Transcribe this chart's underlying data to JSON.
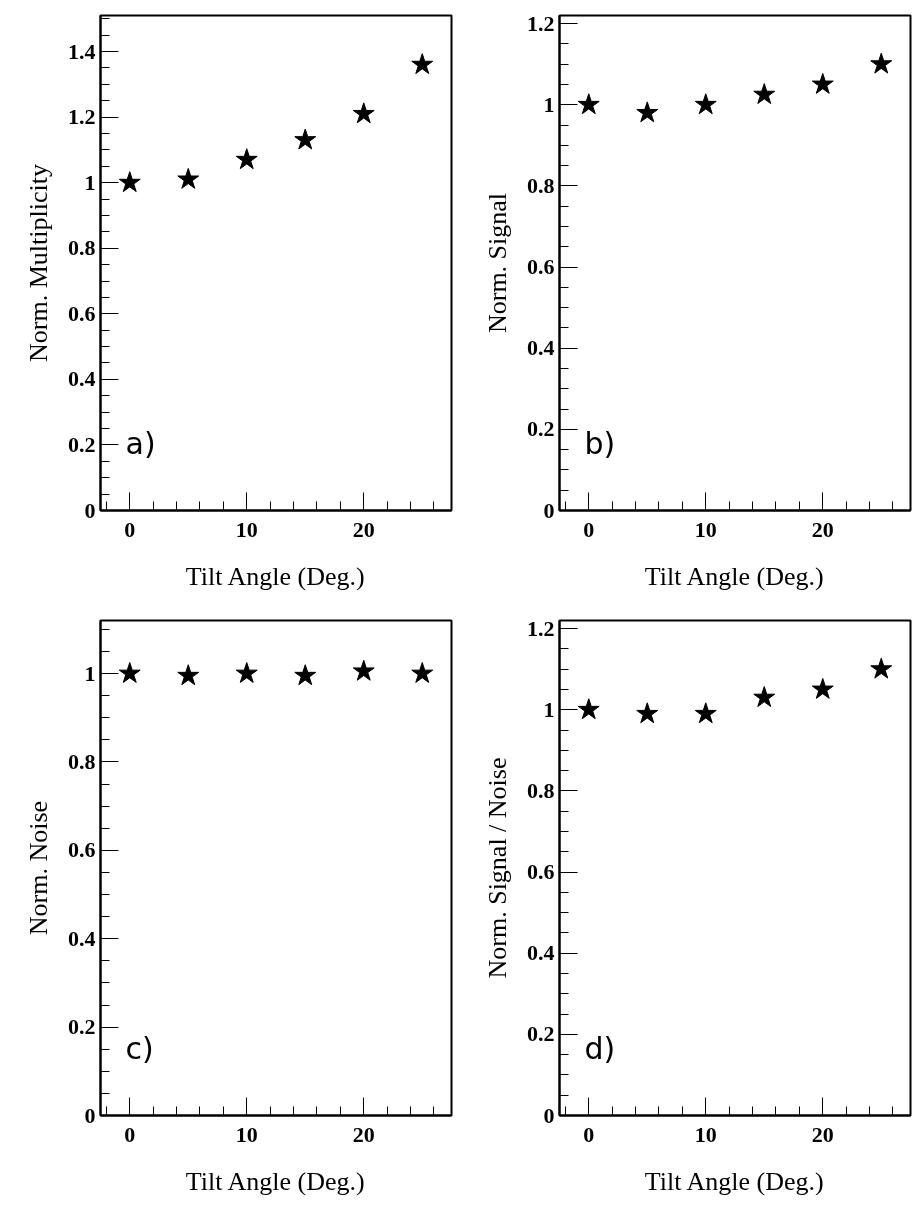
{
  "chart_data": [
    {
      "type": "scatter",
      "xlabel": "Tilt Angle (Deg.)",
      "ylabel": "Norm. Multiplicity",
      "marker": "star",
      "color": "#000000",
      "annotations": [
        "a)"
      ],
      "x": [
        0,
        5,
        10,
        15,
        20,
        25
      ],
      "values": [
        1.0,
        1.01,
        1.07,
        1.13,
        1.21,
        1.36
      ],
      "xlim": [
        -2.5,
        27.5
      ],
      "ylim": [
        0,
        1.51
      ],
      "xticks": [
        0,
        10,
        20
      ],
      "yticks": [
        0,
        0.2,
        0.4,
        0.6,
        0.8,
        1,
        1.2,
        1.4
      ]
    },
    {
      "type": "scatter",
      "xlabel": "Tilt Angle (Deg.)",
      "ylabel": "Norm. Signal",
      "marker": "star",
      "color": "#000000",
      "annotations": [
        "b)"
      ],
      "x": [
        0,
        5,
        10,
        15,
        20,
        25
      ],
      "values": [
        1.0,
        0.98,
        1.0,
        1.025,
        1.05,
        1.1
      ],
      "xlim": [
        -2.5,
        27.5
      ],
      "ylim": [
        0,
        1.22
      ],
      "xticks": [
        0,
        10,
        20
      ],
      "yticks": [
        0,
        0.2,
        0.4,
        0.6,
        0.8,
        1,
        1.2
      ]
    },
    {
      "type": "scatter",
      "xlabel": "Tilt Angle (Deg.)",
      "ylabel": "Norm. Noise",
      "marker": "star",
      "color": "#000000",
      "annotations": [
        "c)"
      ],
      "x": [
        0,
        5,
        10,
        15,
        20,
        25
      ],
      "values": [
        1.0,
        0.995,
        1.0,
        0.995,
        1.005,
        1.0
      ],
      "xlim": [
        -2.5,
        27.5
      ],
      "ylim": [
        0,
        1.12
      ],
      "xticks": [
        0,
        10,
        20
      ],
      "yticks": [
        0,
        0.2,
        0.4,
        0.6,
        0.8,
        1
      ]
    },
    {
      "type": "scatter",
      "xlabel": "Tilt Angle (Deg.)",
      "ylabel": "Norm. Signal / Noise",
      "marker": "star",
      "color": "#000000",
      "annotations": [
        "d)"
      ],
      "x": [
        0,
        5,
        10,
        15,
        20,
        25
      ],
      "values": [
        1.0,
        0.99,
        0.99,
        1.03,
        1.05,
        1.1
      ],
      "xlim": [
        -2.5,
        27.5
      ],
      "ylim": [
        0,
        1.22
      ],
      "xticks": [
        0,
        10,
        20
      ],
      "yticks": [
        0,
        0.2,
        0.4,
        0.6,
        0.8,
        1,
        1.2
      ]
    }
  ]
}
